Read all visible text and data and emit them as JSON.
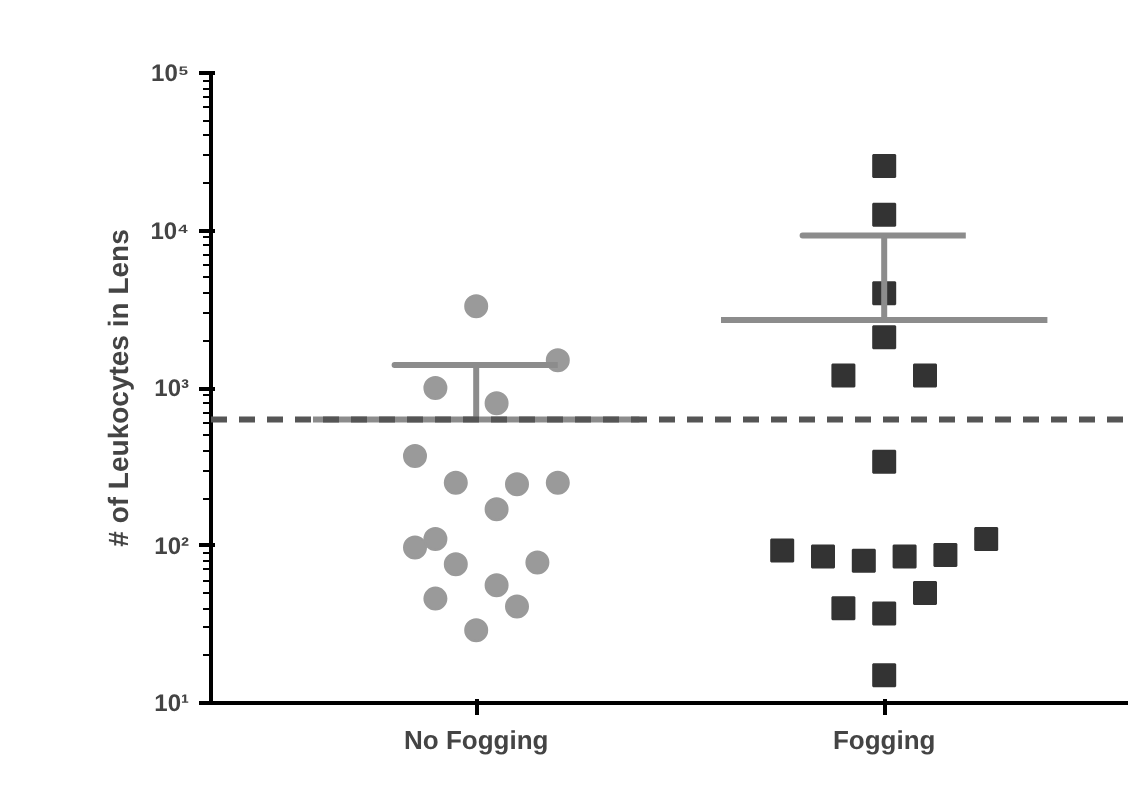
{
  "chart_data": {
    "type": "scatter",
    "ylabel": "# of Leukocytes in Lens",
    "log": "y",
    "ylim": [
      10,
      100000
    ],
    "categories": [
      null,
      null,
      null,
      null,
      null,
      null,
      null,
      null,
      null,
      "No Fogging",
      null,
      null,
      null,
      null,
      null,
      null,
      null,
      null,
      null,
      null,
      null,
      null,
      null,
      null,
      null,
      null,
      null,
      null,
      null,
      "Fogging",
      null,
      null,
      null,
      null,
      null,
      null,
      null,
      null,
      null
    ],
    "yticks": [
      {
        "value": 10,
        "label": "10¹"
      },
      {
        "value": 100,
        "label": "10²"
      },
      {
        "value": 1000,
        "label": "10³"
      },
      {
        "value": 10000,
        "label": "10⁴"
      },
      {
        "value": 100000,
        "label": "10⁵"
      }
    ],
    "grid": false,
    "series": [
      {
        "color": "#9a9a9a",
        "marker": "circle",
        "values": [
          null,
          null,
          null,
          null,
          null,
          null,
          370,
          1000,
          250,
          3300,
          800,
          245,
          78,
          1500,
          null,
          null,
          null,
          null,
          null,
          null,
          null,
          null,
          null,
          null,
          null,
          null,
          null,
          null,
          null,
          null,
          null,
          null,
          null,
          null,
          null,
          null,
          null,
          null,
          null
        ]
      },
      {
        "color": "#9a9a9a",
        "marker": "circle",
        "values": [
          null,
          null,
          null,
          null,
          null,
          null,
          97,
          110,
          76,
          29,
          170,
          41,
          null,
          250,
          null,
          null,
          null,
          null,
          null,
          null,
          null,
          null,
          null,
          null,
          null,
          null,
          null,
          null,
          null,
          null,
          null,
          null,
          null,
          null,
          null,
          null,
          null,
          null,
          null
        ]
      },
      {
        "color": "#9a9a9a",
        "marker": "circle",
        "values": [
          null,
          null,
          null,
          null,
          null,
          null,
          null,
          46,
          null,
          null,
          56,
          null,
          null,
          null,
          null,
          null,
          null,
          null,
          null,
          null,
          null,
          null,
          null,
          null,
          null,
          null,
          null,
          null,
          null,
          null,
          null,
          null,
          null,
          null,
          null,
          null,
          null,
          null,
          null
        ]
      },
      {
        "color": "#333333",
        "marker": "square",
        "values": [
          null,
          null,
          null,
          null,
          null,
          null,
          null,
          null,
          null,
          null,
          null,
          null,
          null,
          null,
          null,
          null,
          null,
          null,
          null,
          null,
          null,
          null,
          null,
          null,
          93,
          null,
          85,
          1200,
          80,
          25700,
          85,
          1200,
          87,
          null,
          110,
          null,
          null,
          null,
          null
        ]
      },
      {
        "color": "#333333",
        "marker": "square",
        "values": [
          null,
          null,
          null,
          null,
          null,
          null,
          null,
          null,
          null,
          null,
          null,
          null,
          null,
          null,
          null,
          null,
          null,
          null,
          null,
          null,
          null,
          null,
          null,
          null,
          null,
          null,
          null,
          40,
          null,
          12600,
          null,
          50,
          null,
          null,
          null,
          null,
          null,
          null,
          null
        ]
      },
      {
        "color": "#333333",
        "marker": "square",
        "values": [
          null,
          null,
          null,
          null,
          null,
          null,
          null,
          null,
          null,
          null,
          null,
          null,
          null,
          null,
          null,
          null,
          null,
          null,
          null,
          null,
          null,
          null,
          null,
          null,
          null,
          null,
          null,
          null,
          null,
          4000,
          null,
          null,
          null,
          null,
          null,
          null,
          null,
          null,
          null
        ]
      },
      {
        "color": "#333333",
        "marker": "square",
        "values": [
          null,
          null,
          null,
          null,
          null,
          null,
          null,
          null,
          null,
          null,
          null,
          null,
          null,
          null,
          null,
          null,
          null,
          null,
          null,
          null,
          null,
          null,
          null,
          null,
          null,
          null,
          null,
          null,
          null,
          2100,
          null,
          null,
          null,
          null,
          null,
          null,
          null,
          null,
          null
        ]
      },
      {
        "color": "#333333",
        "marker": "square",
        "values": [
          null,
          null,
          null,
          null,
          null,
          null,
          null,
          null,
          null,
          null,
          null,
          null,
          null,
          null,
          null,
          null,
          null,
          null,
          null,
          null,
          null,
          null,
          null,
          null,
          null,
          null,
          null,
          null,
          null,
          340,
          null,
          null,
          null,
          null,
          null,
          null,
          null,
          null,
          null
        ]
      },
      {
        "color": "#333333",
        "marker": "square",
        "values": [
          null,
          null,
          null,
          null,
          null,
          null,
          null,
          null,
          null,
          null,
          null,
          null,
          null,
          null,
          null,
          null,
          null,
          null,
          null,
          null,
          null,
          null,
          null,
          null,
          null,
          null,
          null,
          null,
          null,
          37,
          null,
          null,
          null,
          null,
          null,
          null,
          null,
          null,
          null
        ]
      },
      {
        "color": "#333333",
        "marker": "square",
        "values": [
          null,
          null,
          null,
          null,
          null,
          null,
          null,
          null,
          null,
          null,
          null,
          null,
          null,
          null,
          null,
          null,
          null,
          null,
          null,
          null,
          null,
          null,
          null,
          null,
          null,
          null,
          null,
          null,
          null,
          15,
          null,
          null,
          null,
          null,
          null,
          null,
          null,
          null,
          null
        ]
      },
      {
        "type": "line",
        "color": "#8c8c8c",
        "values": [
          null,
          630,
          630,
          630,
          630,
          630,
          630,
          630,
          630,
          630,
          630,
          630,
          630,
          630,
          630,
          630,
          630,
          630,
          null,
          null,
          null,
          null,
          null,
          null,
          null,
          null,
          null,
          null,
          null,
          null,
          null,
          null,
          null,
          null,
          null,
          null,
          null,
          null,
          null
        ],
        "errors": [
          null,
          null,
          null,
          null,
          null,
          null,
          null,
          null,
          null,
          [
            630,
            1400
          ],
          null,
          null,
          null,
          null,
          null,
          null,
          null,
          null,
          null,
          null,
          null,
          null,
          null,
          null,
          null,
          null,
          null,
          null,
          null,
          null,
          null,
          null,
          null,
          null,
          null,
          null,
          null,
          null,
          null
        ]
      },
      {
        "type": "line",
        "color": "#8c8c8c",
        "values": [
          null,
          null,
          null,
          null,
          null,
          null,
          null,
          null,
          null,
          null,
          null,
          null,
          null,
          null,
          null,
          null,
          null,
          null,
          null,
          null,
          null,
          2700,
          2700,
          2700,
          2700,
          2700,
          2700,
          2700,
          2700,
          2700,
          2700,
          2700,
          2700,
          2700,
          2700,
          2700,
          2700,
          2700,
          null
        ],
        "errors": [
          null,
          null,
          null,
          null,
          null,
          null,
          null,
          null,
          null,
          null,
          null,
          null,
          null,
          null,
          null,
          null,
          null,
          null,
          null,
          null,
          null,
          null,
          null,
          null,
          null,
          null,
          null,
          null,
          null,
          [
            2700,
            9300
          ],
          null,
          null,
          null,
          null,
          null,
          null,
          null,
          null,
          null
        ]
      }
    ],
    "ref_lines": [
      {
        "axis": "y",
        "value": 630,
        "color": "#555555",
        "line_style": "dashed"
      }
    ]
  }
}
